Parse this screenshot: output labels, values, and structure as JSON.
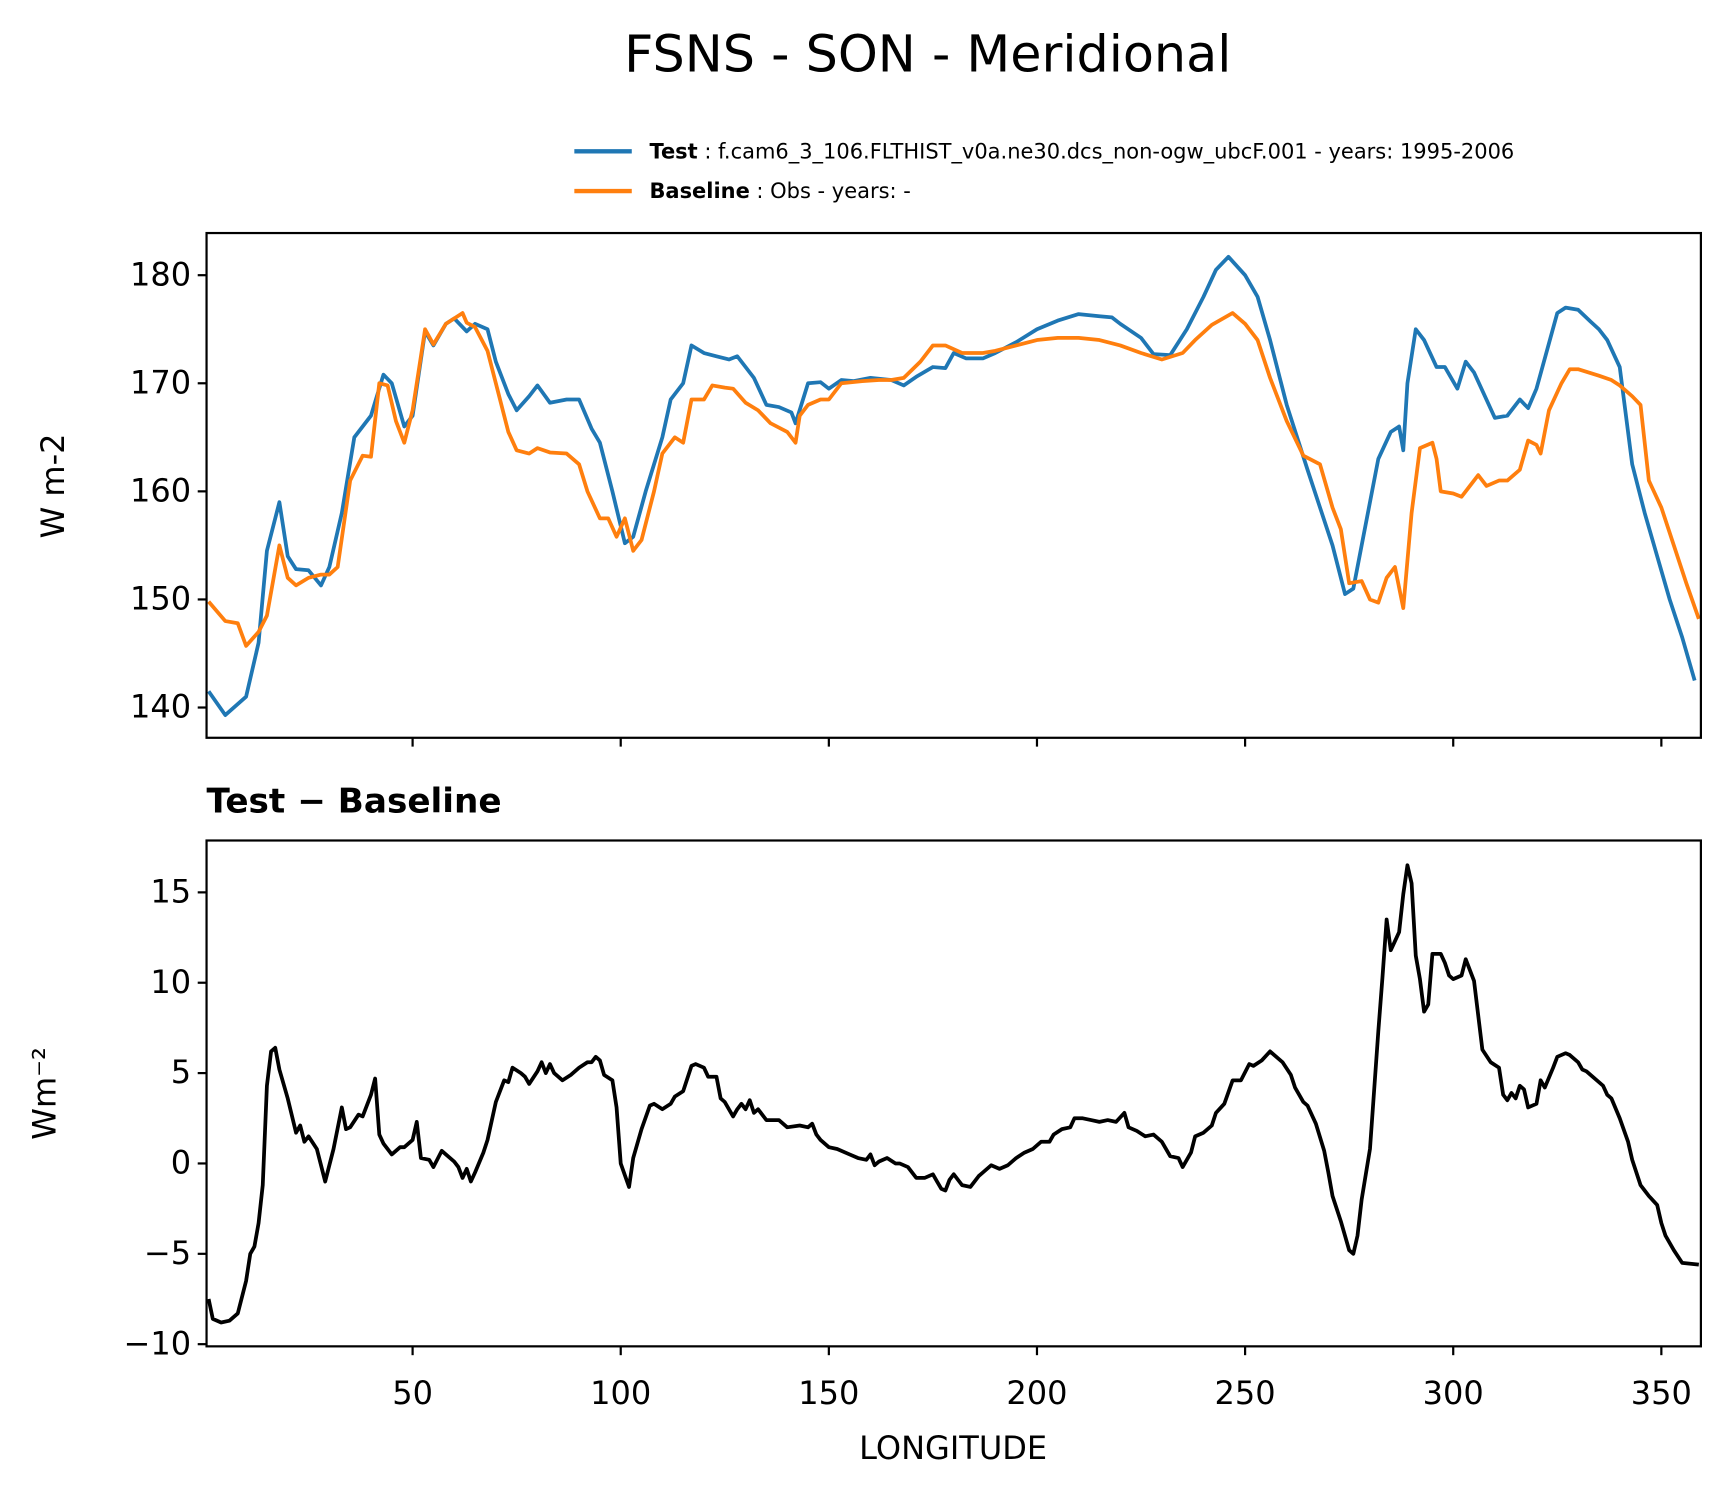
{
  "chart_data": [
    {
      "type": "line",
      "title": "FSNS - SON - Meridional",
      "ylabel": "W m-2",
      "xlim": [
        0.5,
        359.5
      ],
      "ylim": [
        137.2,
        183.9
      ],
      "xticks": [
        50,
        100,
        150,
        200,
        250,
        300,
        350
      ],
      "yticks": [
        140,
        150,
        160,
        170,
        180
      ],
      "series": [
        {
          "name": "Test",
          "description": ": f.cam6_3_106.FLTHIST_v0a.ne30.dcs_non-ogw_ubcF.001 - years: 1995-2006",
          "color": "#1f77b4",
          "x": [
            1,
            5,
            10,
            13,
            15,
            18,
            20,
            22,
            25,
            28,
            30,
            33,
            36,
            40,
            43,
            45,
            48,
            50,
            53,
            55,
            58,
            60,
            63,
            65,
            68,
            70,
            73,
            75,
            78,
            80,
            83,
            87,
            90,
            93,
            95,
            98,
            101,
            103,
            106,
            110,
            112,
            115,
            117,
            120,
            123,
            126,
            128,
            132,
            135,
            138,
            141,
            142,
            145,
            148,
            150,
            153,
            156,
            160,
            165,
            168,
            171,
            175,
            178,
            180,
            183,
            187,
            190,
            195,
            200,
            205,
            210,
            215,
            218,
            220,
            225,
            228,
            232,
            236,
            240,
            243,
            246,
            250,
            253,
            256,
            260,
            265,
            268,
            271,
            274,
            276,
            278,
            282,
            285,
            287,
            288,
            289,
            291,
            293,
            296,
            298,
            301,
            303,
            305,
            310,
            313,
            316,
            318,
            320,
            325,
            327,
            330,
            333,
            335,
            337,
            340,
            343,
            346,
            349,
            352,
            355,
            358
          ],
          "values": [
            141.5,
            139.3,
            141,
            146,
            154.5,
            159,
            154,
            152.8,
            152.7,
            151.3,
            153,
            158,
            165,
            167,
            170.8,
            170,
            166,
            167,
            174.8,
            173.5,
            175.5,
            176,
            174.8,
            175.5,
            175,
            172,
            169,
            167.5,
            168.8,
            169.8,
            168.2,
            168.5,
            168.5,
            165.8,
            164.5,
            160,
            155.2,
            155.8,
            160,
            165,
            168.5,
            170,
            173.5,
            172.8,
            172.5,
            172.2,
            172.5,
            170.5,
            168,
            167.8,
            167.3,
            166.3,
            170,
            170.1,
            169.5,
            170.3,
            170.2,
            170.5,
            170.3,
            169.8,
            170.6,
            171.5,
            171.4,
            172.8,
            172.3,
            172.3,
            172.8,
            173.8,
            175,
            175.8,
            176.4,
            176.2,
            176.1,
            175.5,
            174.2,
            172.7,
            172.6,
            175,
            178,
            180.5,
            181.7,
            180,
            178,
            174,
            168,
            162,
            158.5,
            155,
            150.5,
            151,
            155,
            163,
            165.5,
            166,
            163.8,
            170,
            175,
            174,
            171.5,
            171.5,
            169.5,
            172,
            171,
            166.8,
            167,
            168.5,
            167.7,
            169.5,
            176.5,
            177,
            176.8,
            175.7,
            175,
            174,
            171.5,
            162.5,
            158,
            154,
            150,
            146.5,
            142.5
          ]
        },
        {
          "name": "Baseline",
          "description": ": Obs - years: -",
          "color": "#ff7f0e",
          "x": [
            1,
            5,
            8,
            10,
            13,
            15,
            18,
            20,
            22,
            25,
            28,
            30,
            32,
            35,
            38,
            40,
            42,
            44,
            46,
            48,
            50,
            53,
            55,
            58,
            62,
            63,
            65,
            68,
            70,
            73,
            75,
            78,
            80,
            83,
            87,
            90,
            92,
            95,
            97,
            99,
            101,
            103,
            105,
            108,
            110,
            113,
            115,
            117,
            120,
            122,
            125,
            127,
            130,
            133,
            136,
            140,
            142,
            143,
            145,
            148,
            150,
            153,
            158,
            162,
            165,
            168,
            172,
            175,
            178,
            182,
            187,
            190,
            195,
            200,
            205,
            210,
            215,
            220,
            225,
            230,
            235,
            238,
            242,
            247,
            250,
            253,
            256,
            260,
            264,
            268,
            271,
            273,
            275,
            278,
            280,
            282,
            284,
            286,
            288,
            290,
            292,
            295,
            296,
            297,
            300,
            302,
            304,
            306,
            308,
            311,
            313,
            316,
            318,
            320,
            321,
            323,
            326,
            328,
            330,
            335,
            338,
            340,
            343,
            345,
            347,
            350,
            353,
            356,
            359
          ],
          "values": [
            149.8,
            148,
            147.8,
            145.7,
            147,
            148.5,
            155,
            152,
            151.3,
            152,
            152.3,
            152.3,
            153,
            161,
            163.3,
            163.2,
            170,
            169.8,
            166.5,
            164.5,
            167.5,
            175,
            173.6,
            175.5,
            176.5,
            175.6,
            175.2,
            173,
            170,
            165.5,
            163.8,
            163.5,
            164,
            163.6,
            163.5,
            162.5,
            160,
            157.5,
            157.5,
            155.8,
            157.5,
            154.5,
            155.5,
            160,
            163.5,
            165,
            164.5,
            168.5,
            168.5,
            169.8,
            169.6,
            169.5,
            168.2,
            167.5,
            166.3,
            165.5,
            164.5,
            167,
            168,
            168.5,
            168.5,
            170,
            170.2,
            170.3,
            170.3,
            170.5,
            172,
            173.5,
            173.5,
            172.8,
            172.8,
            173,
            173.5,
            174,
            174.2,
            174.2,
            174,
            173.5,
            172.8,
            172.2,
            172.8,
            174,
            175.4,
            176.5,
            175.5,
            174,
            170.5,
            166.5,
            163.3,
            162.5,
            158.5,
            156.5,
            151.5,
            151.7,
            150,
            149.7,
            152,
            153,
            149.2,
            158,
            164,
            164.5,
            163,
            160,
            159.8,
            159.5,
            160.5,
            161.5,
            160.5,
            161,
            161,
            162,
            164.7,
            164.3,
            163.5,
            167.5,
            170,
            171.3,
            171.3,
            170.7,
            170.3,
            169.8,
            168.8,
            168,
            161,
            158.5,
            155,
            151.5,
            148.2
          ]
        }
      ]
    },
    {
      "type": "line",
      "title": "Test − Baseline",
      "ylabel": "Wm⁻²",
      "xlabel": "LONGITUDE",
      "xlim": [
        0.5,
        359.5
      ],
      "ylim": [
        -10.12,
        17.87
      ],
      "xticks": [
        50,
        100,
        150,
        200,
        250,
        300,
        350
      ],
      "yticks": [
        {
          "value": -10,
          "label": "−10"
        },
        {
          "value": -5,
          "label": "−5"
        },
        0,
        5,
        10,
        15
      ],
      "series": [
        {
          "color": "#000000",
          "x": [
            1,
            2,
            4,
            6,
            8,
            10,
            11,
            12,
            13,
            14,
            15,
            16,
            17,
            18,
            20,
            22,
            23,
            24,
            25,
            27,
            29,
            31,
            33,
            34,
            35,
            37,
            38,
            40,
            41,
            42,
            43,
            45,
            47,
            48,
            50,
            51,
            52,
            54,
            55,
            57,
            58,
            60,
            61,
            62,
            63,
            64,
            65,
            67,
            68,
            70,
            72,
            73,
            74,
            76,
            77,
            78,
            80,
            81,
            82,
            83,
            84,
            86,
            88,
            90,
            92,
            93,
            94,
            95,
            96,
            98,
            99,
            100,
            102,
            103,
            105,
            107,
            108,
            110,
            112,
            113,
            115,
            117,
            118,
            120,
            121,
            123,
            124,
            125,
            127,
            128,
            129,
            130,
            131,
            132,
            133,
            135,
            138,
            140,
            143,
            145,
            146,
            147,
            148,
            150,
            152,
            155,
            157,
            159,
            160,
            161,
            162,
            164,
            166,
            167,
            169,
            171,
            173,
            175,
            176,
            177,
            178,
            179,
            180,
            182,
            184,
            186,
            187,
            189,
            191,
            193,
            195,
            197,
            199,
            201,
            203,
            204,
            206,
            208,
            209,
            211,
            213,
            215,
            217,
            219,
            221,
            222,
            224,
            226,
            228,
            230,
            232,
            234,
            235,
            236,
            237,
            238,
            240,
            242,
            243,
            245,
            247,
            249,
            251,
            252,
            254,
            256,
            257,
            259,
            261,
            262,
            264,
            265,
            267,
            269,
            270,
            271,
            273,
            275,
            276,
            277,
            278,
            280,
            282,
            283,
            284,
            285,
            286,
            287,
            288,
            289,
            290,
            291,
            292,
            293,
            294,
            295,
            297,
            298,
            299,
            300,
            302,
            303,
            305,
            306,
            307,
            309,
            311,
            312,
            313,
            314,
            315,
            316,
            317,
            318,
            320,
            321,
            322,
            324,
            325,
            327,
            328,
            330,
            331,
            332,
            333,
            335,
            336,
            337,
            338,
            340,
            342,
            343,
            345,
            346,
            347,
            349,
            350,
            351,
            353,
            355,
            359
          ],
          "values": [
            -7.5,
            -8.6,
            -8.8,
            -8.7,
            -8.3,
            -6.5,
            -5,
            -4.6,
            -3.3,
            -1.2,
            4.3,
            6.2,
            6.4,
            5.2,
            3.6,
            1.7,
            2.1,
            1.2,
            1.5,
            0.8,
            -1,
            0.8,
            3.1,
            1.9,
            2,
            2.7,
            2.6,
            3.8,
            4.7,
            1.6,
            1.1,
            0.5,
            0.9,
            0.9,
            1.3,
            2.3,
            0.3,
            0.2,
            -0.2,
            0.7,
            0.5,
            0.1,
            -0.2,
            -0.8,
            -0.3,
            -1,
            -0.5,
            0.6,
            1.3,
            3.4,
            4.6,
            4.5,
            5.3,
            5,
            4.8,
            4.4,
            5.1,
            5.6,
            5,
            5.5,
            5,
            4.6,
            4.9,
            5.3,
            5.6,
            5.6,
            5.9,
            5.7,
            4.9,
            4.6,
            3.1,
            0,
            -1.3,
            0.3,
            1.9,
            3.2,
            3.3,
            3,
            3.3,
            3.7,
            4,
            5.4,
            5.5,
            5.3,
            4.8,
            4.8,
            3.6,
            3.4,
            2.6,
            3,
            3.3,
            3,
            3.5,
            2.8,
            3,
            2.4,
            2.4,
            2,
            2.1,
            2,
            2.2,
            1.6,
            1.3,
            0.9,
            0.8,
            0.5,
            0.3,
            0.2,
            0.5,
            -0.1,
            0.1,
            0.3,
            0,
            0,
            -0.2,
            -0.8,
            -0.8,
            -0.6,
            -1,
            -1.4,
            -1.5,
            -0.9,
            -0.6,
            -1.2,
            -1.3,
            -0.7,
            -0.5,
            -0.1,
            -0.3,
            -0.1,
            0.3,
            0.6,
            0.8,
            1.2,
            1.2,
            1.6,
            1.9,
            2,
            2.5,
            2.5,
            2.4,
            2.3,
            2.4,
            2.3,
            2.8,
            2,
            1.8,
            1.5,
            1.6,
            1.2,
            0.4,
            0.3,
            -0.2,
            0.2,
            0.6,
            1.5,
            1.7,
            2.1,
            2.8,
            3.3,
            4.6,
            4.6,
            5.5,
            5.4,
            5.7,
            6.2,
            6,
            5.6,
            4.9,
            4.2,
            3.4,
            3.2,
            2.2,
            0.7,
            -0.5,
            -1.8,
            -3.2,
            -4.8,
            -5,
            -4,
            -2,
            0.8,
            7.3,
            10.3,
            13.5,
            11.8,
            12.3,
            12.8,
            14.9,
            16.5,
            15.5,
            11.5,
            10.2,
            8.4,
            8.8,
            11.6,
            11.6,
            11.1,
            10.4,
            10.2,
            10.4,
            11.3,
            10.1,
            8.2,
            6.3,
            5.6,
            5.3,
            3.8,
            3.5,
            3.9,
            3.6,
            4.3,
            4.1,
            3.1,
            3.3,
            4.6,
            4.2,
            5.3,
            5.9,
            6.1,
            6,
            5.6,
            5.2,
            5.1,
            4.9,
            4.5,
            4.3,
            3.8,
            3.6,
            2.5,
            1.2,
            0.2,
            -1.2,
            -1.5,
            -1.8,
            -2.3,
            -3.3,
            -4,
            -4.8,
            -5.5,
            -5.6
          ]
        }
      ]
    }
  ]
}
